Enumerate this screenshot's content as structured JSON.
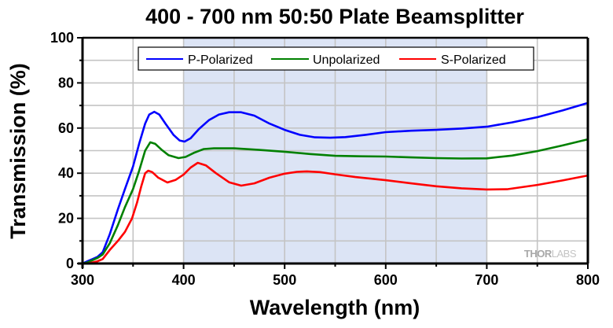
{
  "chart_data": {
    "type": "line",
    "title": "400 - 700 nm 50:50 Plate Beamsplitter",
    "xlabel": "Wavelength (nm)",
    "ylabel": "Transmission (%)",
    "xlim": [
      300,
      800
    ],
    "ylim": [
      0,
      100
    ],
    "xticks": [
      300,
      400,
      500,
      600,
      700,
      800
    ],
    "xtick_labels": [
      "300",
      "400",
      "500",
      "600",
      "700",
      "800"
    ],
    "x_minor_ticks": [
      350,
      450,
      550,
      650,
      750
    ],
    "yticks": [
      0,
      20,
      40,
      60,
      80,
      100
    ],
    "ytick_labels": [
      "0",
      "20",
      "40",
      "60",
      "80",
      "100"
    ],
    "y_minor_ticks": [
      10,
      30,
      50,
      70,
      90
    ],
    "grid": true,
    "shaded_region": {
      "x_start": 400,
      "x_end": 700,
      "color": "#dce4f5"
    },
    "legend": {
      "placement": "top-center",
      "orientation": "horizontal"
    },
    "watermark": {
      "bold": "THOR",
      "light": "LABS"
    },
    "series": [
      {
        "name": "P-Polarized",
        "color": "#0000ff",
        "x": [
          300,
          305,
          310,
          315,
          320,
          327,
          335,
          342,
          350,
          356,
          362,
          366,
          371,
          376,
          382,
          390,
          396,
          401,
          407,
          415,
          425,
          435,
          445,
          457,
          470,
          485,
          500,
          515,
          530,
          545,
          560,
          580,
          600,
          625,
          650,
          675,
          700,
          725,
          750,
          775,
          800
        ],
        "values": [
          0,
          1,
          2,
          3,
          5,
          13,
          24,
          33,
          43,
          53,
          62,
          66,
          67.2,
          66,
          62,
          57,
          54.5,
          54,
          55.5,
          59.5,
          63.5,
          66,
          67,
          67,
          65.5,
          62,
          59.2,
          57,
          55.9,
          55.7,
          56,
          57,
          58.2,
          58.8,
          59.2,
          59.8,
          60.6,
          62.5,
          64.8,
          67.8,
          71.1
        ]
      },
      {
        "name": "Unpolarized",
        "color": "#008000",
        "x": [
          300,
          305,
          310,
          315,
          320,
          327,
          335,
          342,
          350,
          356,
          362,
          367,
          372,
          378,
          385,
          395,
          402,
          410,
          420,
          430,
          450,
          475,
          500,
          525,
          550,
          575,
          600,
          625,
          650,
          675,
          700,
          725,
          750,
          775,
          800
        ],
        "values": [
          0,
          0.5,
          1.5,
          2.5,
          4,
          9,
          17,
          25,
          33,
          41,
          50,
          53.7,
          53,
          50.5,
          48,
          46.7,
          47.2,
          49,
          50.7,
          51,
          51,
          50.3,
          49.5,
          48.5,
          47.7,
          47.5,
          47.4,
          47,
          46.7,
          46.5,
          46.6,
          47.8,
          49.8,
          52.3,
          55
        ]
      },
      {
        "name": "S-Polarized",
        "color": "#ff0000",
        "x": [
          300,
          305,
          310,
          315,
          320,
          327,
          335,
          342,
          349,
          354,
          358,
          362,
          365,
          369,
          375,
          384,
          392,
          400,
          407,
          414,
          422,
          432,
          445,
          457,
          470,
          485,
          500,
          512,
          522,
          535,
          550,
          570,
          600,
          625,
          650,
          675,
          700,
          720,
          750,
          775,
          800
        ],
        "values": [
          0,
          0,
          0.5,
          1,
          2,
          6,
          10,
          14,
          20,
          27,
          34,
          40,
          41.1,
          40.5,
          38,
          35.9,
          37,
          39.4,
          42.5,
          44.6,
          43.5,
          40,
          36,
          34.5,
          35.5,
          38,
          39.8,
          40.6,
          40.8,
          40.5,
          39.5,
          38.3,
          36.9,
          35.5,
          34.2,
          33.3,
          32.8,
          32.9,
          34.8,
          36.8,
          39
        ]
      }
    ]
  }
}
